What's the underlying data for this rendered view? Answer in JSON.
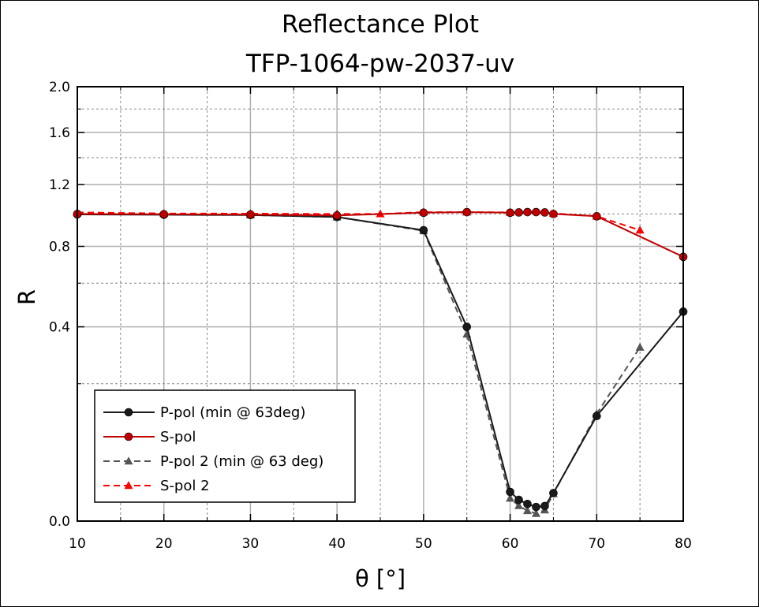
{
  "chart_data": {
    "type": "line",
    "title": "Reflectance Plot",
    "subtitle": "TFP-1064-pw-2037-uv",
    "xlabel": "θ [°]",
    "ylabel": "R",
    "xlim": [
      10,
      80
    ],
    "x_ticks": [
      "10",
      "20",
      "30",
      "40",
      "50",
      "60",
      "70",
      "80"
    ],
    "y_scale": "sqrt",
    "ylim": [
      0,
      2.0
    ],
    "y_ticks": [
      "0.0",
      "0.4",
      "0.8",
      "1.2",
      "1.6",
      "2.0"
    ],
    "grid": true,
    "legend_position": "lower-left",
    "series": [
      {
        "name": "P-pol (min @ 63deg)",
        "color": "#1a1a1a",
        "marker": "circle",
        "dash": "solid",
        "x": [
          10,
          20,
          30,
          40,
          50,
          55,
          60,
          61,
          62,
          63,
          64,
          65,
          70,
          80
        ],
        "y": [
          0.997,
          0.995,
          0.993,
          0.98,
          0.897,
          0.4,
          0.009,
          0.0048,
          0.0031,
          0.0021,
          0.0024,
          0.0083,
          0.117,
          0.465
        ]
      },
      {
        "name": "S-pol",
        "color": "#c00000",
        "marker": "circle",
        "dash": "solid",
        "x": [
          10,
          20,
          30,
          40,
          50,
          55,
          60,
          61,
          62,
          63,
          64,
          65,
          70,
          80
        ],
        "y": [
          1.0,
          0.998,
          0.996,
          0.99,
          1.008,
          1.012,
          1.008,
          1.01,
          1.012,
          1.012,
          1.01,
          1.0,
          0.985,
          0.74
        ]
      },
      {
        "name": "P-pol 2 (min @ 63 deg)",
        "color": "#555555",
        "marker": "triangle",
        "dash": "dashed",
        "x": [
          30,
          40,
          50,
          55,
          60,
          61,
          62,
          63,
          64,
          65,
          70,
          75
        ],
        "y": [
          0.993,
          0.98,
          0.893,
          0.37,
          0.0055,
          0.0025,
          0.00115,
          0.0006,
          0.0013,
          0.0079,
          0.122,
          0.32
        ]
      },
      {
        "name": "S-pol 2",
        "color": "#ff0000",
        "marker": "triangle",
        "dash": "dashed",
        "x": [
          10,
          20,
          30,
          40,
          45,
          50,
          55,
          60,
          65,
          70,
          75
        ],
        "y": [
          1.01,
          1.003,
          1.002,
          1.0,
          1.0,
          1.012,
          1.012,
          1.01,
          1.003,
          0.985,
          0.897
        ]
      }
    ]
  }
}
